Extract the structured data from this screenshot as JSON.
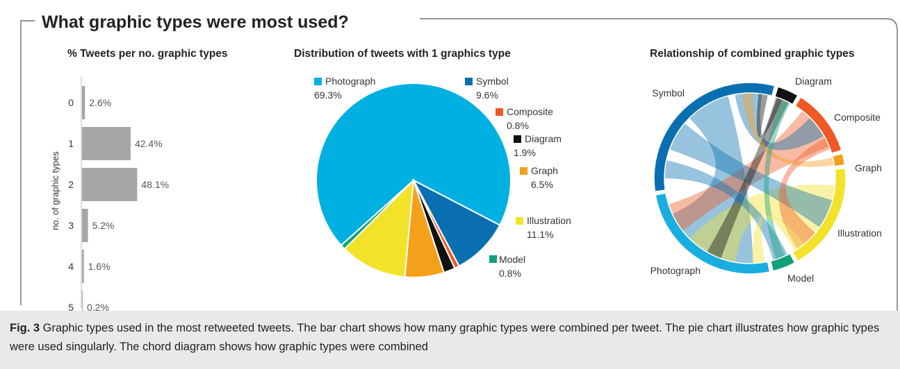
{
  "main_title": "What graphic types were most used?",
  "caption": {
    "label": "Fig. 3",
    "text": " Graphic types used in the most retweeted tweets. The bar chart shows how many graphic types were combined per tweet. The pie chart illustrates how graphic types were used singularly. The chord diagram shows how graphic types were combined"
  },
  "chart_data": [
    {
      "type": "bar",
      "orientation": "horizontal",
      "title": "% Tweets per no. graphic types",
      "ylabel": "no. of graphic types",
      "categories": [
        "0",
        "1",
        "2",
        "3",
        "4",
        "5"
      ],
      "values": [
        2.6,
        42.4,
        48.1,
        5.2,
        1.6,
        0.2
      ],
      "value_labels": [
        "2.6%",
        "42.4%",
        "48.1%",
        "5.2%",
        "1.6%",
        "0.2%"
      ],
      "color": "#a6a6a6"
    },
    {
      "type": "pie",
      "title": "Distribution of tweets with 1 graphics type",
      "slices": [
        {
          "name": "Photograph",
          "label": "69.3%",
          "value": 69.3,
          "color": "#00b0e0"
        },
        {
          "name": "Symbol",
          "label": "9.6%",
          "value": 9.6,
          "color": "#0a6fb0"
        },
        {
          "name": "Composite",
          "label": "0.8%",
          "value": 0.8,
          "color": "#ef5a24"
        },
        {
          "name": "Diagram",
          "label": "1.9%",
          "value": 1.9,
          "color": "#111111"
        },
        {
          "name": "Graph",
          "label": "6.5%",
          "value": 6.5,
          "color": "#f5a01a"
        },
        {
          "name": "Illustration",
          "label": "11.1%",
          "value": 11.1,
          "color": "#f2e22a"
        },
        {
          "name": "Model",
          "label": "0.8%",
          "value": 0.8,
          "color": "#12a07a"
        }
      ]
    },
    {
      "type": "chord",
      "title": "Relationship of combined graphic types",
      "groups": [
        {
          "name": "Diagram",
          "color": "#111111"
        },
        {
          "name": "Composite",
          "color": "#ef5a24"
        },
        {
          "name": "Graph",
          "color": "#f5a01a"
        },
        {
          "name": "Illustration",
          "color": "#f2e22a"
        },
        {
          "name": "Model",
          "color": "#12a07a"
        },
        {
          "name": "Photograph",
          "color": "#1aaee0"
        },
        {
          "name": "Symbol",
          "color": "#0a6fb0"
        }
      ]
    }
  ]
}
